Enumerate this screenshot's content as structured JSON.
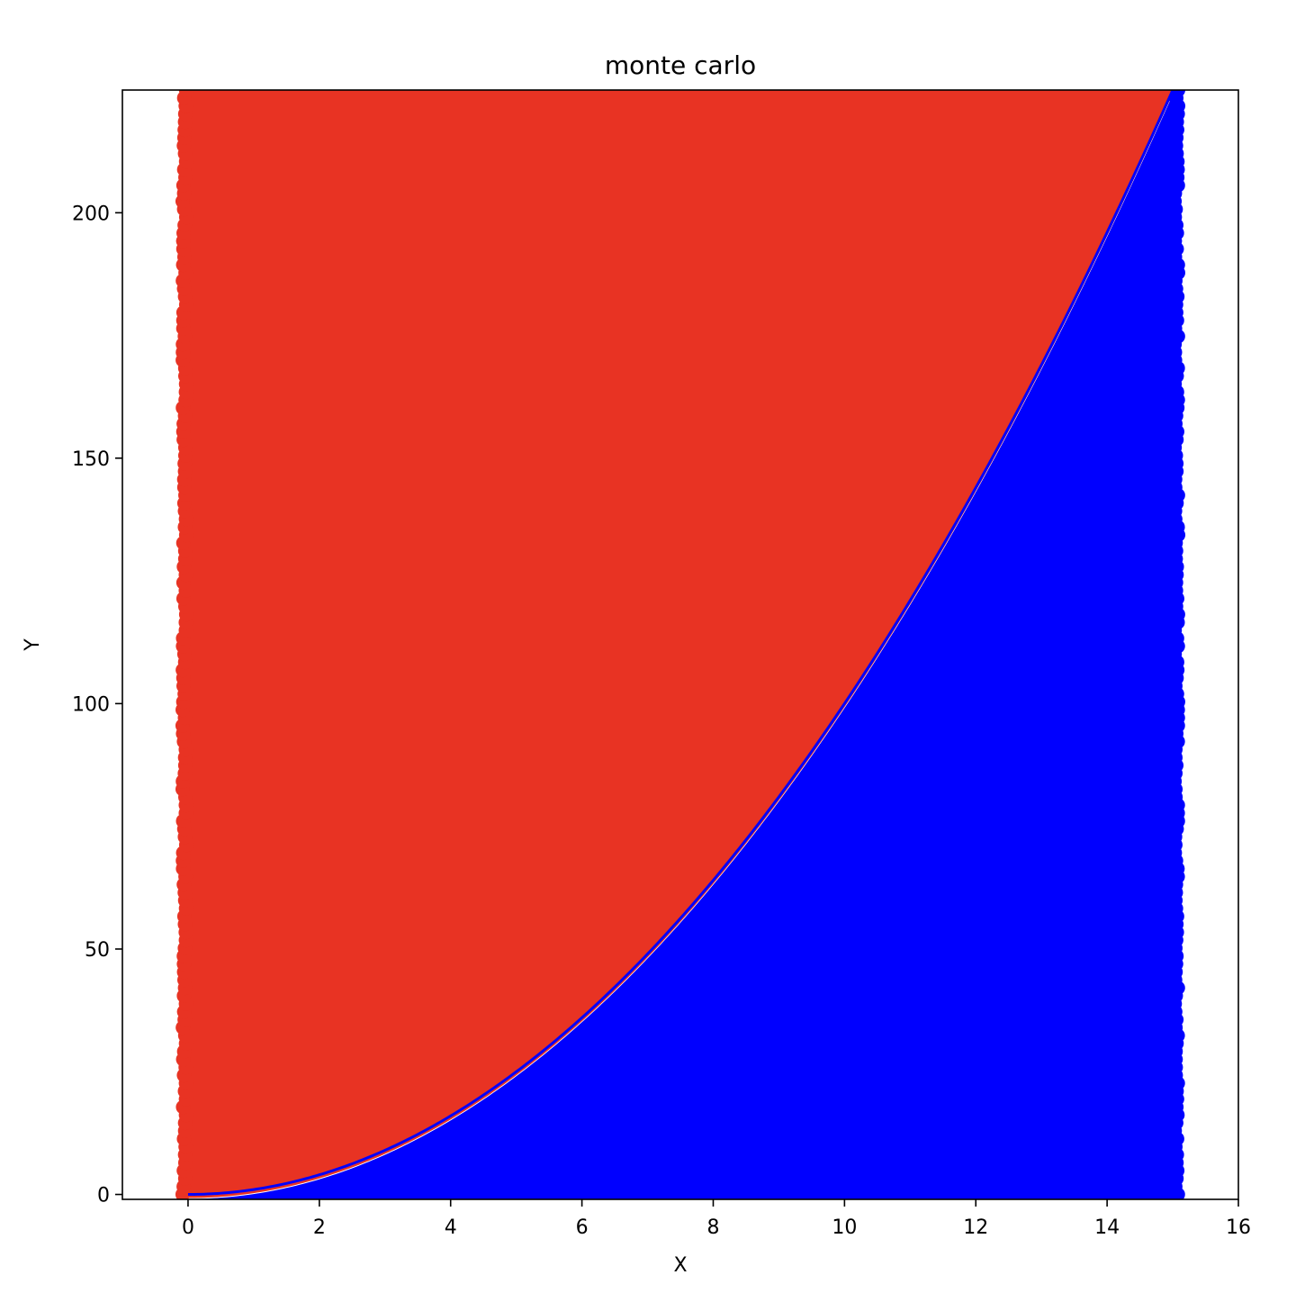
{
  "chart_data": {
    "type": "scatter",
    "title": "monte carlo",
    "xlabel": "X",
    "ylabel": "Y",
    "xlim": [
      -1,
      16
    ],
    "ylim": [
      -1,
      225
    ],
    "xticks": [
      0,
      2,
      4,
      6,
      8,
      10,
      12,
      14,
      16
    ],
    "yticks": [
      0,
      50,
      100,
      150,
      200
    ],
    "grid": false,
    "legend": "none",
    "points": {
      "x_range": [
        0,
        15
      ],
      "y_range": [
        0,
        225
      ],
      "marker": "circle"
    },
    "series": [
      {
        "kind": "scatter",
        "rule": "y > x^2",
        "color": "#e83323"
      },
      {
        "kind": "scatter",
        "rule": "y <= x^2",
        "color": "#0000ff"
      },
      {
        "kind": "line",
        "function": "y = x^2",
        "x_range": [
          0,
          15
        ],
        "color": "#0000ff"
      }
    ]
  }
}
